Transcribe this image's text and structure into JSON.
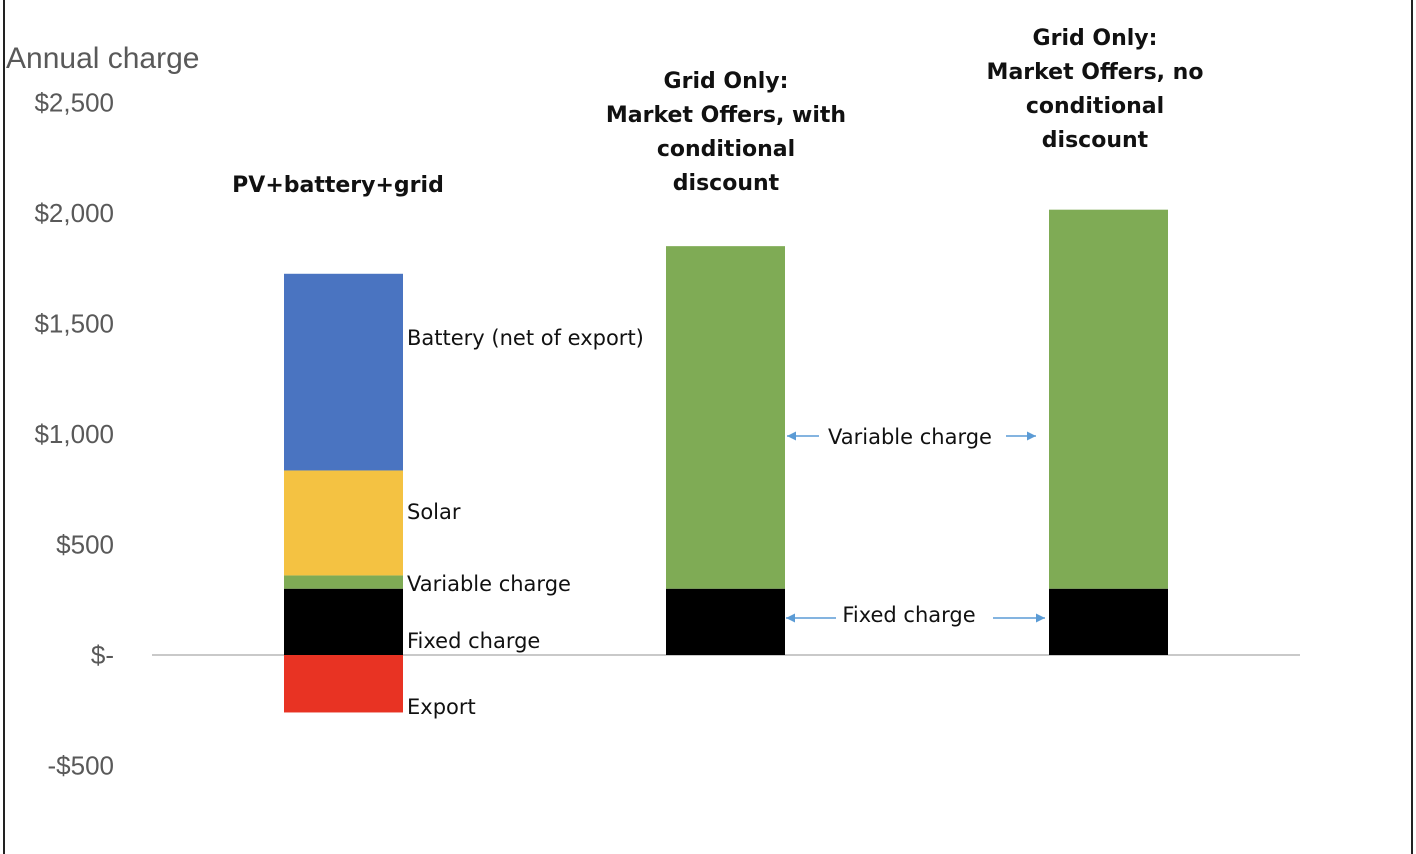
{
  "chart_data": {
    "type": "bar",
    "stacked": true,
    "ylabel": "Annual charge",
    "ylim": [
      -500,
      2500
    ],
    "yticks": [
      {
        "value": 2500,
        "label": "$2,500"
      },
      {
        "value": 2000,
        "label": "$2,000"
      },
      {
        "value": 1500,
        "label": "$1,500"
      },
      {
        "value": 1000,
        "label": "$1,000"
      },
      {
        "value": 500,
        "label": "$500"
      },
      {
        "value": 0,
        "label": "$-"
      },
      {
        "value": -500,
        "label": "-$500"
      }
    ],
    "categories": [
      {
        "lines": [
          "PV+battery+grid"
        ]
      },
      {
        "lines": [
          "Grid Only:",
          "Market Offers, with",
          "conditional",
          "discount"
        ]
      },
      {
        "lines": [
          "Grid Only:",
          "Market Offers, no",
          "conditional",
          "discount"
        ]
      }
    ],
    "series": [
      {
        "name": "Export",
        "color": "#e83323",
        "values": [
          -260,
          0,
          0
        ]
      },
      {
        "name": "Fixed charge",
        "color": "#000000",
        "values": [
          300,
          300,
          300
        ]
      },
      {
        "name": "Variable charge",
        "color": "#7fab55",
        "values": [
          60,
          1550,
          1715
        ]
      },
      {
        "name": "Solar",
        "color": "#f4c242",
        "values": [
          475,
          0,
          0
        ]
      },
      {
        "name": "Battery (net of export)",
        "color": "#4a74c1",
        "values": [
          890,
          0,
          0
        ]
      }
    ],
    "annotations": {
      "battery": "Battery (net of export)",
      "solar": "Solar",
      "variable": "Variable charge",
      "fixed": "Fixed charge",
      "export": "Export",
      "variable_between": "Variable charge",
      "fixed_between": "Fixed charge"
    }
  }
}
